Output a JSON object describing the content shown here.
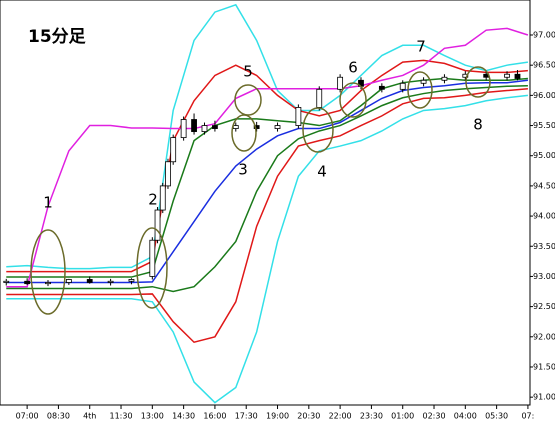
{
  "chart_data": {
    "type": "line",
    "title": "15分足",
    "x": [
      -1,
      0,
      1,
      2,
      3,
      4,
      5,
      6,
      7,
      8,
      9,
      10,
      11,
      12,
      13,
      14,
      15,
      16,
      17,
      18,
      19,
      20,
      21,
      22,
      23,
      24
    ],
    "xlim": [
      -1.3,
      24.1
    ],
    "ylim": [
      90.87,
      97.58
    ],
    "xticks": [
      {
        "value": 0,
        "label": "07:00"
      },
      {
        "value": 1.5,
        "label": "08:30"
      },
      {
        "value": 3,
        "label": "4th"
      },
      {
        "value": 4.5,
        "label": "11:30"
      },
      {
        "value": 6,
        "label": "13:00"
      },
      {
        "value": 7.5,
        "label": "14:30"
      },
      {
        "value": 9,
        "label": "16:00"
      },
      {
        "value": 10.5,
        "label": "17:30"
      },
      {
        "value": 12,
        "label": "19:00"
      },
      {
        "value": 13.5,
        "label": "20:30"
      },
      {
        "value": 15,
        "label": "22:00"
      },
      {
        "value": 16.5,
        "label": "23:30"
      },
      {
        "value": 18,
        "label": "01:00"
      },
      {
        "value": 19.5,
        "label": "02:30"
      },
      {
        "value": 21,
        "label": "04:00"
      },
      {
        "value": 22.5,
        "label": "05:30"
      },
      {
        "value": 24,
        "label": "07:"
      }
    ],
    "yticks": [
      {
        "value": 91,
        "label": "91.00"
      },
      {
        "value": 91.5,
        "label": "91.50"
      },
      {
        "value": 92,
        "label": "92.00"
      },
      {
        "value": 92.5,
        "label": "92.50"
      },
      {
        "value": 93,
        "label": "93.00"
      },
      {
        "value": 93.5,
        "label": "93.50"
      },
      {
        "value": 94,
        "label": "94.00"
      },
      {
        "value": 94.5,
        "label": "94.50"
      },
      {
        "value": 95,
        "label": "95.00"
      },
      {
        "value": 95.5,
        "label": "95.50"
      },
      {
        "value": 96,
        "label": "96.00"
      },
      {
        "value": 96.5,
        "label": "96.50"
      },
      {
        "value": 97,
        "label": "97.00"
      }
    ],
    "series": [
      {
        "color": "#33e0e8",
        "values": [
          93.16,
          93.18,
          93.15,
          93.13,
          93.13,
          93.15,
          93.15,
          93.33,
          95.75,
          96.91,
          97.38,
          97.5,
          96.91,
          96.08,
          95.75,
          95.75,
          96.0,
          96.33,
          96.66,
          96.83,
          96.83,
          96.66,
          96.5,
          96.41,
          96.5,
          96.55
        ]
      },
      {
        "color": "#33e0e8",
        "values": [
          92.63,
          92.63,
          92.63,
          92.63,
          92.63,
          92.63,
          92.63,
          92.58,
          92.08,
          91.25,
          90.91,
          91.16,
          92.08,
          93.58,
          94.66,
          95.08,
          95.16,
          95.25,
          95.41,
          95.61,
          95.75,
          95.78,
          95.83,
          95.91,
          95.96,
          96.0
        ]
      },
      {
        "color": "#e01818",
        "values": [
          93.08,
          93.08,
          93.08,
          93.08,
          93.08,
          93.08,
          93.08,
          93.25,
          95.25,
          95.91,
          96.33,
          96.5,
          96.33,
          96.0,
          95.75,
          95.66,
          95.75,
          96.08,
          96.33,
          96.55,
          96.58,
          96.53,
          96.41,
          96.38,
          96.38,
          96.41
        ]
      },
      {
        "color": "#e01818",
        "values": [
          92.7,
          92.7,
          92.7,
          92.7,
          92.7,
          92.7,
          92.7,
          92.71,
          92.25,
          91.91,
          92.0,
          92.58,
          93.83,
          94.66,
          95.16,
          95.25,
          95.33,
          95.5,
          95.66,
          95.86,
          95.95,
          95.96,
          96.0,
          96.05,
          96.08,
          96.11
        ]
      },
      {
        "color": "#1a7a1a",
        "values": [
          92.99,
          92.99,
          92.99,
          92.99,
          92.99,
          92.99,
          92.99,
          93.08,
          94.25,
          95.25,
          95.5,
          95.61,
          95.61,
          95.58,
          95.55,
          95.5,
          95.58,
          95.83,
          96.11,
          96.21,
          96.25,
          96.28,
          96.25,
          96.25,
          96.25,
          96.28
        ]
      },
      {
        "color": "#1a7a1a",
        "values": [
          92.8,
          92.8,
          92.8,
          92.8,
          92.8,
          92.8,
          92.8,
          92.83,
          92.75,
          92.83,
          93.16,
          93.58,
          94.41,
          95.0,
          95.28,
          95.41,
          95.5,
          95.66,
          95.83,
          95.96,
          96.03,
          96.08,
          96.11,
          96.13,
          96.15,
          96.16
        ]
      },
      {
        "color": "#1a2ee0",
        "values": [
          92.9,
          92.9,
          92.9,
          92.9,
          92.9,
          92.9,
          92.9,
          92.91,
          93.41,
          93.91,
          94.41,
          94.83,
          95.11,
          95.33,
          95.45,
          95.45,
          95.55,
          95.75,
          95.95,
          96.08,
          96.13,
          96.16,
          96.2,
          96.21,
          96.21,
          96.25
        ]
      },
      {
        "color": "#e020e0",
        "values": [
          92.83,
          92.83,
          94.16,
          95.08,
          95.5,
          95.5,
          95.46,
          95.46,
          95.45,
          95.45,
          95.53,
          95.95,
          96.11,
          96.11,
          96.11,
          96.11,
          96.11,
          96.16,
          96.25,
          96.33,
          96.5,
          96.78,
          96.83,
          97.08,
          97.11,
          97.0
        ]
      }
    ],
    "candles": {
      "x": [
        -1,
        0,
        1,
        2,
        3,
        4,
        5,
        6,
        6.25,
        6.5,
        6.75,
        7,
        7.5,
        8,
        8.5,
        9,
        10,
        11,
        12,
        13,
        14,
        15,
        16,
        17,
        18,
        19,
        20,
        21,
        22,
        23,
        23.5
      ],
      "open": [
        92.9,
        92.92,
        92.88,
        92.9,
        92.95,
        92.9,
        92.92,
        93.0,
        93.6,
        94.1,
        94.5,
        94.9,
        95.3,
        95.6,
        95.4,
        95.5,
        95.45,
        95.5,
        95.45,
        95.5,
        95.8,
        96.1,
        96.25,
        96.15,
        96.1,
        96.2,
        96.25,
        96.3,
        96.35,
        96.3,
        96.35
      ],
      "high": [
        92.96,
        92.97,
        92.94,
        92.96,
        93.0,
        92.96,
        92.97,
        93.65,
        94.15,
        94.55,
        94.95,
        95.35,
        95.65,
        95.7,
        95.55,
        95.58,
        95.55,
        95.56,
        95.55,
        95.85,
        96.15,
        96.35,
        96.3,
        96.2,
        96.25,
        96.3,
        96.35,
        96.4,
        96.4,
        96.4,
        96.42
      ],
      "low": [
        92.85,
        92.86,
        92.84,
        92.86,
        92.88,
        92.85,
        92.87,
        92.95,
        93.55,
        94.05,
        94.45,
        94.85,
        95.25,
        95.35,
        95.35,
        95.4,
        95.4,
        95.4,
        95.4,
        95.45,
        95.75,
        96.05,
        96.1,
        96.05,
        96.05,
        96.15,
        96.2,
        96.25,
        96.25,
        96.25,
        96.25
      ],
      "close": [
        92.92,
        92.88,
        92.9,
        92.95,
        92.9,
        92.92,
        92.95,
        93.6,
        94.1,
        94.5,
        94.9,
        95.3,
        95.6,
        95.4,
        95.5,
        95.45,
        95.5,
        95.45,
        95.5,
        95.8,
        96.1,
        96.3,
        96.15,
        96.1,
        96.2,
        96.25,
        96.3,
        96.35,
        96.3,
        96.35,
        96.28
      ]
    },
    "annotations": [
      {
        "label": "1"
      },
      {
        "label": "2"
      },
      {
        "label": "3"
      },
      {
        "label": "4"
      },
      {
        "label": "5"
      },
      {
        "label": "6"
      },
      {
        "label": "7"
      },
      {
        "label": "8"
      }
    ]
  }
}
